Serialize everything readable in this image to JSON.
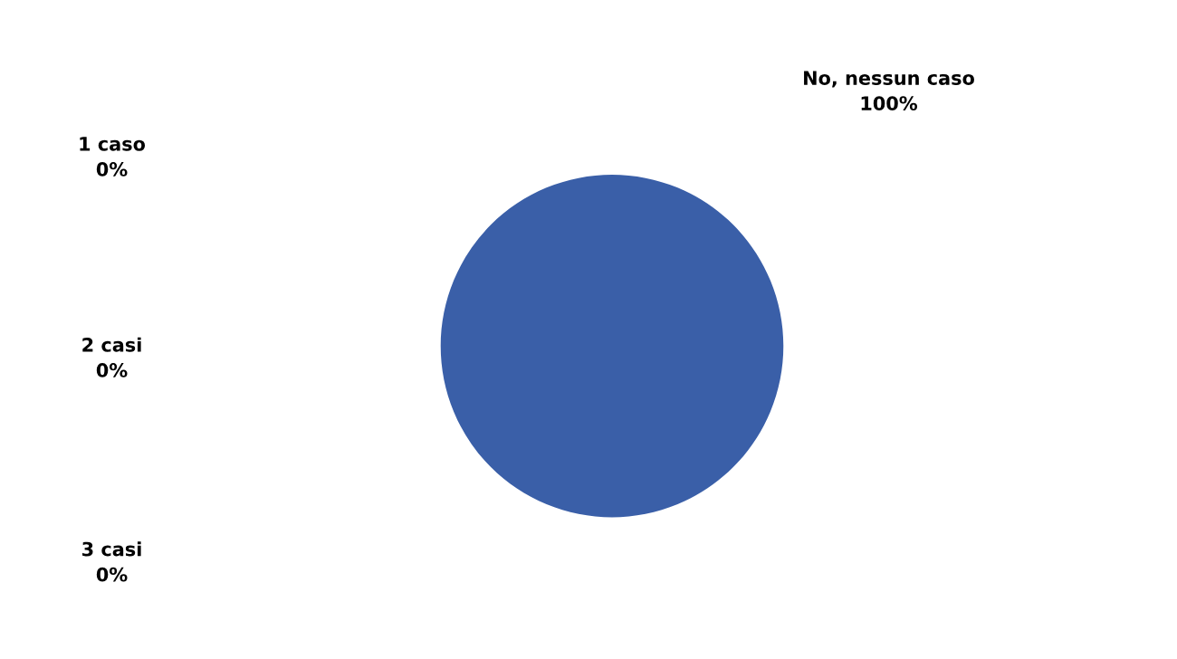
{
  "chart_data": {
    "type": "pie",
    "categories": [
      "No, nessun caso",
      "1 caso",
      "2 casi",
      "3 casi"
    ],
    "values": [
      100,
      0,
      0,
      0
    ],
    "value_labels": [
      "100%",
      "0%",
      "0%",
      "0%"
    ],
    "colors": [
      "#3a5fa8",
      "#c0504d",
      "#9bbb59",
      "#a07800"
    ],
    "legend": false
  }
}
